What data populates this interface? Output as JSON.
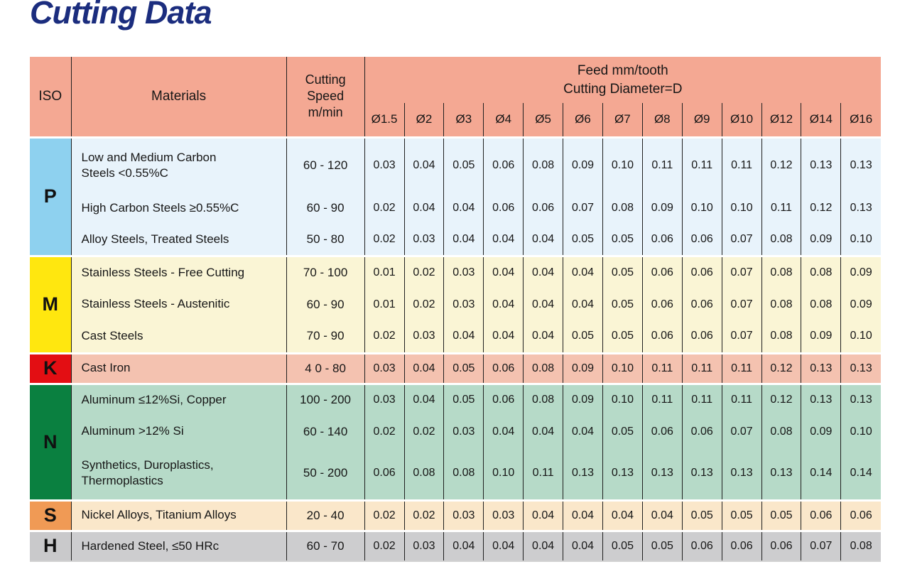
{
  "page_title": "Cutting Data",
  "title_color": "#1b2d7e",
  "header_background": "#f4a893",
  "table": {
    "headers": {
      "iso": "ISO",
      "materials": "Materials",
      "cutting_speed": "Cutting Speed m/min",
      "feed_line1": "Feed mm/tooth",
      "feed_line2": "Cutting Diameter=D",
      "diameters": [
        "Ø1.5",
        "Ø2",
        "Ø3",
        "Ø4",
        "Ø5",
        "Ø6",
        "Ø7",
        "Ø8",
        "Ø9",
        "Ø10",
        "Ø12",
        "Ø14",
        "Ø16"
      ]
    },
    "groups": [
      {
        "iso": "P",
        "iso_color": "#8ed1ef",
        "row_color": "#e8f3fb",
        "rows": [
          {
            "material": "Low and Medium Carbon\nSteels <0.55%C",
            "speed": "60 - 120",
            "feeds": [
              "0.03",
              "0.04",
              "0.05",
              "0.06",
              "0.08",
              "0.09",
              "0.10",
              "0.11",
              "0.11",
              "0.11",
              "0.12",
              "0.13",
              "0.13"
            ]
          },
          {
            "material": "High Carbon Steels ≥0.55%C",
            "speed": "60 - 90",
            "feeds": [
              "0.02",
              "0.04",
              "0.04",
              "0.06",
              "0.06",
              "0.07",
              "0.08",
              "0.09",
              "0.10",
              "0.10",
              "0.11",
              "0.12",
              "0.13"
            ]
          },
          {
            "material": "Alloy Steels, Treated Steels",
            "speed": "50 - 80",
            "feeds": [
              "0.02",
              "0.03",
              "0.04",
              "0.04",
              "0.04",
              "0.05",
              "0.05",
              "0.06",
              "0.06",
              "0.07",
              "0.08",
              "0.09",
              "0.10"
            ]
          }
        ]
      },
      {
        "iso": "M",
        "iso_color": "#ffe70f",
        "row_color": "#faf5d5",
        "rows": [
          {
            "material": "Stainless Steels - Free Cutting",
            "speed": "70 - 100",
            "feeds": [
              "0.01",
              "0.02",
              "0.03",
              "0.04",
              "0.04",
              "0.04",
              "0.05",
              "0.06",
              "0.06",
              "0.07",
              "0.08",
              "0.08",
              "0.09"
            ]
          },
          {
            "material": "Stainless Steels - Austenitic",
            "speed": "60 - 90",
            "feeds": [
              "0.01",
              "0.02",
              "0.03",
              "0.04",
              "0.04",
              "0.04",
              "0.05",
              "0.06",
              "0.06",
              "0.07",
              "0.08",
              "0.08",
              "0.09"
            ]
          },
          {
            "material": "Cast Steels",
            "speed": "70 - 90",
            "feeds": [
              "0.02",
              "0.03",
              "0.04",
              "0.04",
              "0.04",
              "0.05",
              "0.05",
              "0.06",
              "0.06",
              "0.07",
              "0.08",
              "0.09",
              "0.10"
            ]
          }
        ]
      },
      {
        "iso": "K",
        "iso_color": "#e30e13",
        "row_color": "#f4c2b0",
        "rows": [
          {
            "material": "Cast Iron",
            "speed": "4 0 - 80",
            "feeds": [
              "0.03",
              "0.04",
              "0.05",
              "0.06",
              "0.08",
              "0.09",
              "0.10",
              "0.11",
              "0.11",
              "0.11",
              "0.12",
              "0.13",
              "0.13"
            ]
          }
        ]
      },
      {
        "iso": "N",
        "iso_color": "#0a8040",
        "row_color": "#b6dac8",
        "rows": [
          {
            "material": "Aluminum ≤12%Si, Copper",
            "speed": "100 - 200",
            "feeds": [
              "0.03",
              "0.04",
              "0.05",
              "0.06",
              "0.08",
              "0.09",
              "0.10",
              "0.11",
              "0.11",
              "0.11",
              "0.12",
              "0.13",
              "0.13"
            ]
          },
          {
            "material": "Aluminum >12% Si",
            "speed": "60 - 140",
            "feeds": [
              "0.02",
              "0.02",
              "0.03",
              "0.04",
              "0.04",
              "0.04",
              "0.05",
              "0.06",
              "0.06",
              "0.07",
              "0.08",
              "0.09",
              "0.10"
            ]
          },
          {
            "material": "Synthetics, Duroplastics,\nThermoplastics",
            "speed": "50 - 200",
            "feeds": [
              "0.06",
              "0.08",
              "0.08",
              "0.10",
              "0.11",
              "0.13",
              "0.13",
              "0.13",
              "0.13",
              "0.13",
              "0.13",
              "0.14",
              "0.14"
            ]
          }
        ]
      },
      {
        "iso": "S",
        "iso_color": "#f09a55",
        "row_color": "#fae7ca",
        "rows": [
          {
            "material": "Nickel Alloys, Titanium Alloys",
            "speed": "20 - 40",
            "feeds": [
              "0.02",
              "0.02",
              "0.03",
              "0.03",
              "0.04",
              "0.04",
              "0.04",
              "0.04",
              "0.05",
              "0.05",
              "0.05",
              "0.06",
              "0.06"
            ]
          }
        ]
      },
      {
        "iso": "H",
        "iso_color": "#c9c9cb",
        "row_color": "#cdcdcf",
        "rows": [
          {
            "material": "Hardened Steel, ≤50 HRc",
            "speed": "60 - 70",
            "feeds": [
              "0.02",
              "0.03",
              "0.04",
              "0.04",
              "0.04",
              "0.04",
              "0.05",
              "0.05",
              "0.06",
              "0.06",
              "0.06",
              "0.07",
              "0.08"
            ]
          }
        ]
      }
    ]
  }
}
